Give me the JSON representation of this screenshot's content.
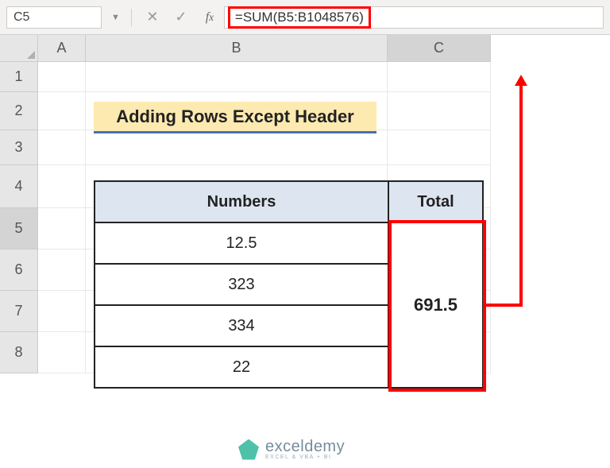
{
  "formula_bar": {
    "cell_ref": "C5",
    "formula": "=SUM(B5:B1048576)"
  },
  "columns": {
    "A": "A",
    "B": "B",
    "C": "C"
  },
  "row_labels": [
    "1",
    "2",
    "3",
    "4",
    "5",
    "6",
    "7",
    "8"
  ],
  "title": "Adding Rows Except Header",
  "table": {
    "header_numbers": "Numbers",
    "header_total": "Total",
    "rows": [
      "12.5",
      "323",
      "334",
      "22"
    ],
    "total": "691.5"
  },
  "watermark": {
    "main": "exceldemy",
    "sub": "EXCEL & VBA + BI"
  },
  "colors": {
    "highlight_border": "#ff0000",
    "banner_bg": "#fdeab1",
    "banner_underline": "#4a6fb0",
    "table_head_bg": "#dde6f0",
    "grid_head_bg": "#e6e6e6"
  }
}
